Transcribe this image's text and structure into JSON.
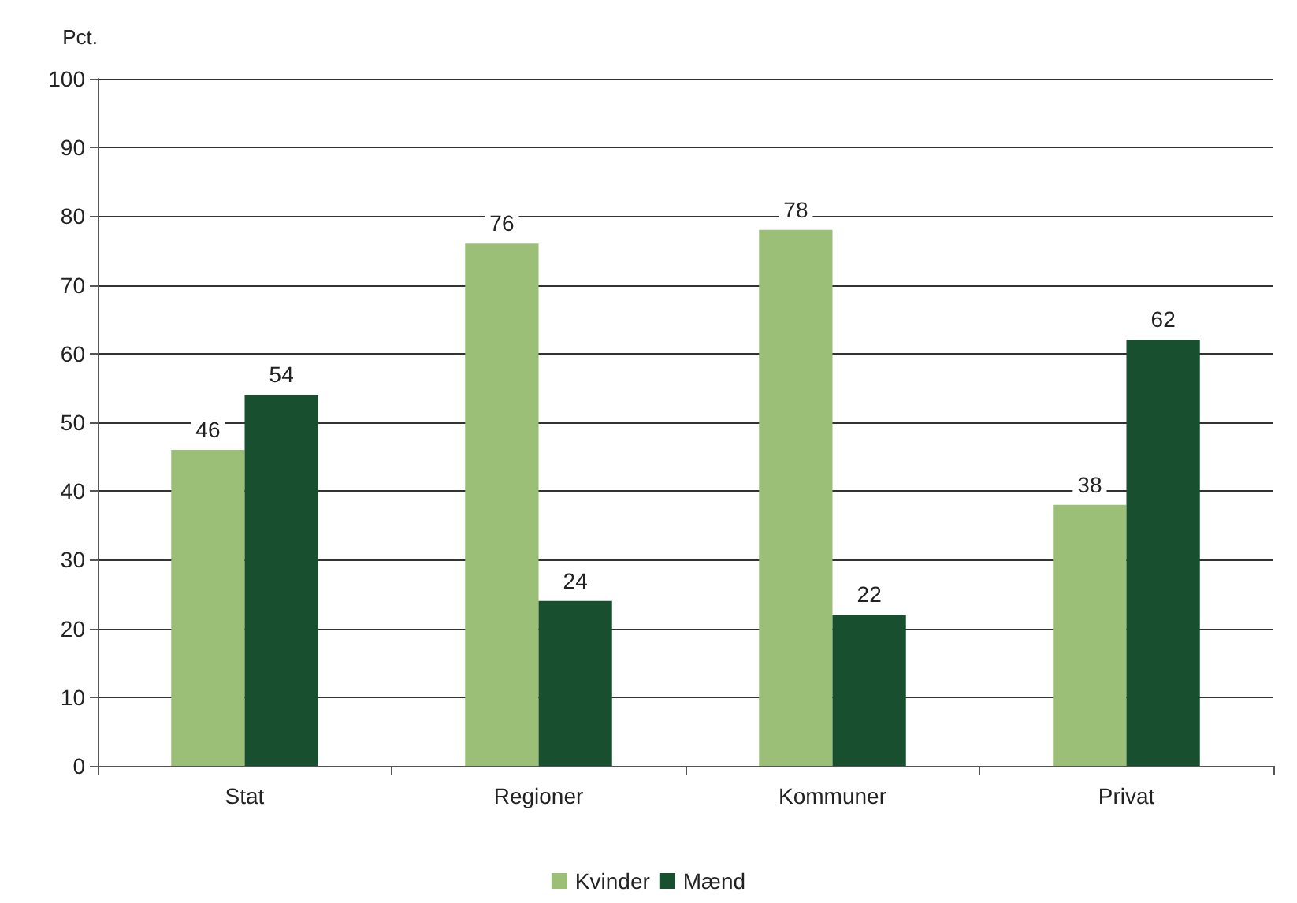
{
  "chart_data": {
    "type": "bar",
    "ylabel": "Pct.",
    "categories": [
      "Stat",
      "Regioner",
      "Kommuner",
      "Privat"
    ],
    "series": [
      {
        "name": "Kvinder",
        "color": "#9bbf77",
        "values": [
          46,
          76,
          78,
          38
        ]
      },
      {
        "name": "Mænd",
        "color": "#174f2f",
        "values": [
          54,
          24,
          22,
          62
        ]
      }
    ],
    "ylim": [
      0,
      100
    ],
    "yticks": [
      0,
      10,
      20,
      30,
      40,
      50,
      60,
      70,
      80,
      90,
      100
    ],
    "grid": "y",
    "legend": "bottom",
    "data_labels": true
  }
}
